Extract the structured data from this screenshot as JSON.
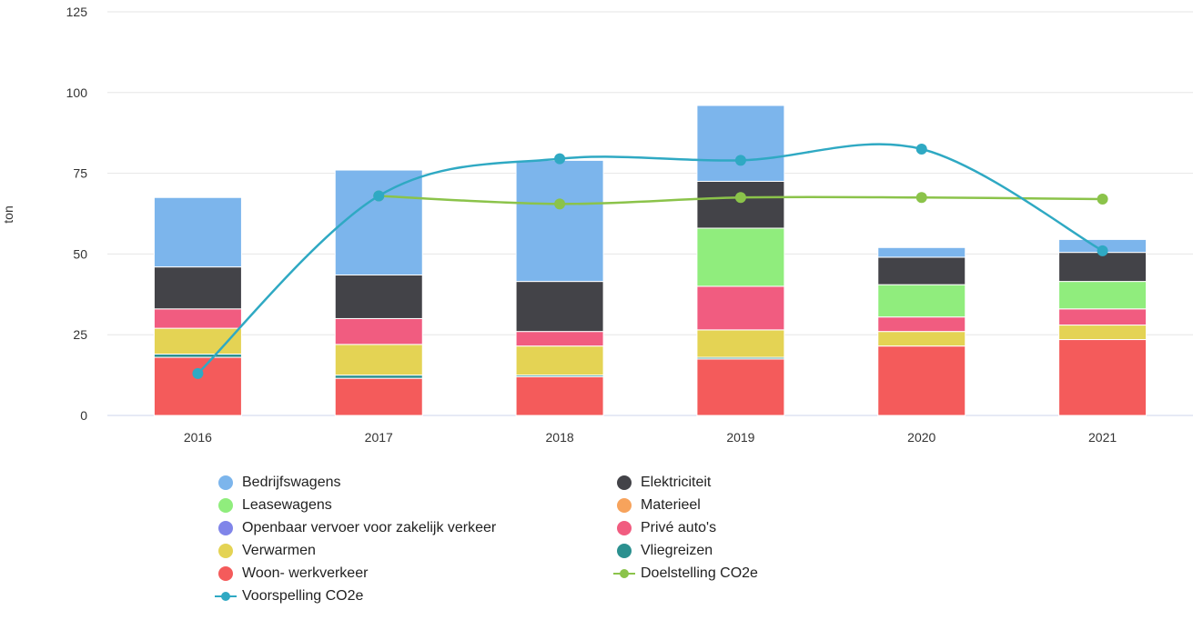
{
  "chart_data": {
    "type": "bar",
    "stacked": true,
    "ylabel": "ton",
    "ylim": [
      0,
      125
    ],
    "yticks": [
      "0",
      "25",
      "50",
      "75",
      "100",
      "125"
    ],
    "grid": true,
    "legend_position": "bottom",
    "categories": [
      "2016",
      "2017",
      "2018",
      "2019",
      "2020",
      "2021"
    ],
    "series": [
      {
        "name": "Woon- werkverkeer",
        "color": "#f45b5b",
        "values": [
          18,
          11.5,
          12,
          17.5,
          21.5,
          23.5
        ]
      },
      {
        "name": "Vliegreizen",
        "color": "#2b908f",
        "values": [
          1,
          1,
          0.5,
          0.5,
          0,
          0
        ]
      },
      {
        "name": "Verwarmen",
        "color": "#e4d354",
        "values": [
          8,
          9.5,
          9,
          8.5,
          4.5,
          4.5
        ]
      },
      {
        "name": "Privé auto's",
        "color": "#f15c80",
        "values": [
          6,
          8,
          4.5,
          13.5,
          4.5,
          5
        ]
      },
      {
        "name": "Openbaar vervoer voor zakelijk verkeer",
        "color": "#8085e9",
        "values": [
          0,
          0,
          0,
          0,
          0,
          0
        ]
      },
      {
        "name": "Materieel",
        "color": "#f7a35c",
        "values": [
          0,
          0,
          0,
          0,
          0,
          0
        ]
      },
      {
        "name": "Leasewagens",
        "color": "#90ed7d",
        "values": [
          0,
          0,
          0,
          18,
          10,
          8.5
        ]
      },
      {
        "name": "Elektriciteit",
        "color": "#434348",
        "values": [
          13,
          13.5,
          15.5,
          14.5,
          8.5,
          9
        ]
      },
      {
        "name": "Bedrijfswagens",
        "color": "#7cb5ec",
        "values": [
          21.5,
          32.5,
          37.5,
          23.5,
          3,
          4
        ]
      }
    ],
    "lines": [
      {
        "name": "Doelstelling CO2e",
        "color": "#8bc34a",
        "values": [
          null,
          68,
          65.5,
          67.5,
          67.5,
          67
        ]
      },
      {
        "name": "Voorspelling CO2e",
        "color": "#2fa9c3",
        "values": [
          13,
          68,
          79.5,
          79,
          82.5,
          51
        ]
      }
    ],
    "legend": [
      {
        "name": "Bedrijfswagens",
        "color": "#7cb5ec",
        "kind": "dot"
      },
      {
        "name": "Elektriciteit",
        "color": "#434348",
        "kind": "dot"
      },
      {
        "name": "Leasewagens",
        "color": "#90ed7d",
        "kind": "dot"
      },
      {
        "name": "Materieel",
        "color": "#f7a35c",
        "kind": "dot"
      },
      {
        "name": "Openbaar vervoer voor zakelijk verkeer",
        "color": "#8085e9",
        "kind": "dot"
      },
      {
        "name": "Privé auto's",
        "color": "#f15c80",
        "kind": "dot"
      },
      {
        "name": "Verwarmen",
        "color": "#e4d354",
        "kind": "dot"
      },
      {
        "name": "Vliegreizen",
        "color": "#2b908f",
        "kind": "dot"
      },
      {
        "name": "Woon- werkverkeer",
        "color": "#f45b5b",
        "kind": "dot"
      },
      {
        "name": "Doelstelling CO2e",
        "color": "#8bc34a",
        "kind": "line"
      },
      {
        "name": "Voorspelling CO2e",
        "color": "#2fa9c3",
        "kind": "line"
      }
    ]
  }
}
